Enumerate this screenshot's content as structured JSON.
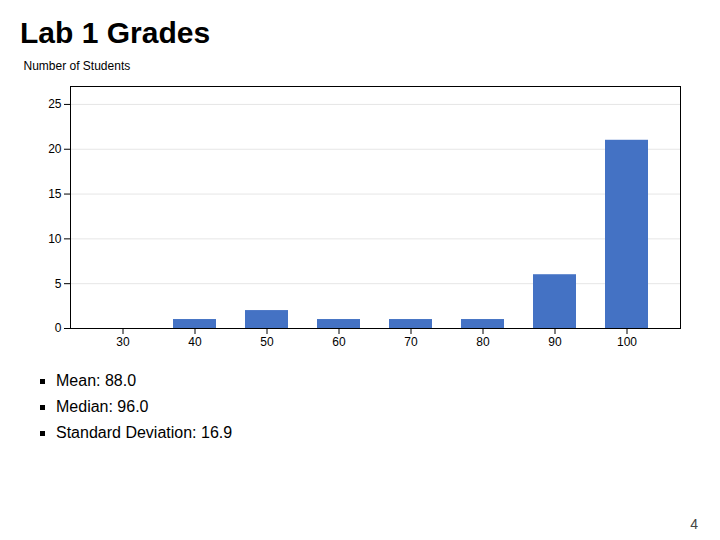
{
  "chart_data": {
    "type": "bar",
    "title": "Lab 1 Grades",
    "ylabel": "Number of Students",
    "categories": [
      30,
      40,
      50,
      60,
      70,
      80,
      90,
      100
    ],
    "values": [
      0,
      1,
      2,
      1,
      1,
      1,
      6,
      21
    ],
    "color": "#4472C4",
    "ylim": [
      0,
      27
    ],
    "yticks": [
      0,
      5,
      10,
      15,
      20,
      25
    ],
    "grid": true,
    "annotations": [
      "Mean: 88.0",
      "Median: 96.0",
      "Standard Deviation: 16.9",
      "4"
    ]
  }
}
